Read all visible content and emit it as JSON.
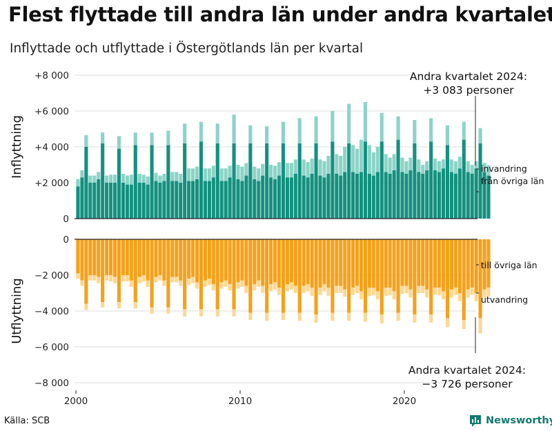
{
  "title": "Flest flyttade till andra län under andra kvartalet",
  "subtitle": "Inflyttade och utflyttade i Östergötlands län per kvartal",
  "source": "Källa: SCB",
  "brand": {
    "name": "Newsworthy",
    "icon": "newsworthy-logo-icon"
  },
  "colors": {
    "in_domestic": "#14917f",
    "in_immigration": "#8dd3c7",
    "out_domestic": "#f5a11b",
    "out_emigration": "#fbd894",
    "grid": "#dddddd",
    "axis": "#222222"
  },
  "callouts": {
    "top": {
      "line1": "Andra kvartalet 2024:",
      "line2": "+3 083 personer"
    },
    "bottom": {
      "line1": "Andra kvartalet 2024:",
      "line2": "−3 726 personer"
    }
  },
  "chart_data": {
    "type": "bar",
    "stacked": true,
    "x_start": 2000,
    "quarters_per_year": 4,
    "x_ticks": [
      "2000",
      "2010",
      "2020"
    ],
    "panels": [
      {
        "ylabel": "Inflyttning",
        "ylim": [
          0,
          8000
        ],
        "y_ticks": [
          0,
          2000,
          4000,
          6000,
          8000
        ],
        "y_tick_labels": [
          "0",
          "+2 000",
          "+4 000",
          "+6 000",
          "+8 000"
        ],
        "series": [
          {
            "name": "från övriga län",
            "color_key": "in_domestic",
            "values": [
              1800,
              2300,
              4000,
              2000,
              2000,
              2200,
              4200,
              2000,
              2000,
              2000,
              3900,
              2000,
              1900,
              1900,
              4100,
              2000,
              2000,
              1900,
              4100,
              2100,
              2000,
              2100,
              4100,
              2100,
              2100,
              2000,
              4200,
              2100,
              2100,
              2200,
              4300,
              2100,
              2100,
              2300,
              4200,
              2100,
              2100,
              2300,
              4200,
              2200,
              2100,
              2400,
              4200,
              2200,
              2100,
              2400,
              4200,
              2300,
              2200,
              2400,
              4200,
              2300,
              2300,
              2500,
              4200,
              2400,
              2300,
              2500,
              4200,
              2400,
              2300,
              2500,
              4300,
              2500,
              2400,
              2600,
              4200,
              2600,
              2500,
              2600,
              4300,
              2500,
              2400,
              2600,
              4300,
              2600,
              2500,
              2700,
              4400,
              2600,
              2500,
              2700,
              4200,
              2600,
              2500,
              2700,
              4300,
              2700,
              2600,
              2800,
              4100,
              2600,
              2500,
              2800,
              4400,
              2600,
              2500,
              2800,
              4200,
              2600,
              2400
            ]
          },
          {
            "name": "invandring",
            "color_key": "in_immigration",
            "values": [
              400,
              400,
              650,
              400,
              400,
              400,
              600,
              400,
              450,
              450,
              700,
              500,
              500,
              550,
              700,
              500,
              450,
              450,
              700,
              450,
              400,
              400,
              800,
              500,
              500,
              500,
              1100,
              700,
              700,
              700,
              1100,
              700,
              700,
              650,
              1100,
              700,
              700,
              650,
              1600,
              800,
              800,
              700,
              1000,
              700,
              700,
              650,
              950,
              700,
              750,
              750,
              1200,
              800,
              800,
              800,
              1400,
              900,
              850,
              850,
              1500,
              900,
              900,
              1000,
              1700,
              1100,
              1100,
              1400,
              2200,
              1500,
              1400,
              1800,
              2200,
              1600,
              1300,
              1400,
              1600,
              1000,
              900,
              900,
              1300,
              800,
              700,
              700,
              1300,
              700,
              500,
              500,
              1300,
              650,
              600,
              500,
              1100,
              700,
              700,
              650,
              1000,
              600,
              500,
              400,
              850,
              500,
              580
            ]
          }
        ]
      },
      {
        "ylabel": "Utflyttning",
        "ylim": [
          -8000,
          0
        ],
        "y_ticks": [
          0,
          -2000,
          -4000,
          -6000,
          -8000
        ],
        "y_tick_labels": [
          "0",
          "−2 000",
          "−4 000",
          "−6 000",
          "−8 000"
        ],
        "series": [
          {
            "name": "till övriga län",
            "color_key": "out_domestic",
            "values": [
              -1900,
              -2300,
              -3600,
              -2000,
              -2000,
              -2100,
              -3500,
              -2000,
              -2000,
              -2100,
              -3500,
              -2000,
              -2000,
              -2300,
              -3500,
              -2100,
              -2000,
              -2300,
              -3800,
              -2100,
              -2000,
              -2300,
              -3800,
              -2100,
              -2100,
              -2300,
              -3900,
              -2200,
              -2100,
              -2400,
              -3900,
              -2300,
              -2200,
              -2500,
              -3900,
              -2400,
              -2300,
              -2500,
              -3900,
              -2400,
              -2300,
              -2600,
              -4100,
              -2500,
              -2300,
              -2600,
              -4100,
              -2500,
              -2400,
              -2700,
              -4100,
              -2500,
              -2400,
              -2600,
              -4100,
              -2600,
              -2500,
              -2700,
              -4200,
              -2700,
              -2500,
              -2700,
              -4100,
              -2600,
              -2600,
              -2800,
              -4100,
              -2700,
              -2600,
              -2900,
              -4100,
              -2700,
              -2700,
              -2900,
              -4200,
              -2700,
              -2700,
              -2900,
              -4100,
              -2600,
              -2600,
              -2800,
              -4200,
              -2600,
              -2600,
              -2800,
              -4200,
              -2700,
              -2700,
              -2900,
              -4400,
              -2800,
              -2700,
              -3000,
              -4500,
              -2800,
              -2700,
              -3000,
              -4400,
              -2800,
              -2700
            ]
          },
          {
            "name": "utvandring",
            "color_key": "out_emigration",
            "values": [
              -300,
              -300,
              -350,
              -300,
              -300,
              -350,
              -300,
              -300,
              -350,
              -350,
              -350,
              -350,
              -350,
              -350,
              -350,
              -350,
              -350,
              -350,
              -350,
              -300,
              -300,
              -300,
              -350,
              -300,
              -300,
              -300,
              -400,
              -350,
              -350,
              -350,
              -400,
              -350,
              -350,
              -350,
              -400,
              -350,
              -350,
              -350,
              -400,
              -350,
              -350,
              -400,
              -400,
              -350,
              -350,
              -400,
              -450,
              -400,
              -400,
              -400,
              -400,
              -400,
              -400,
              -400,
              -450,
              -400,
              -400,
              -450,
              -450,
              -400,
              -400,
              -450,
              -450,
              -400,
              -400,
              -400,
              -450,
              -400,
              -400,
              -450,
              -500,
              -450,
              -400,
              -450,
              -500,
              -450,
              -400,
              -450,
              -450,
              -450,
              -400,
              -450,
              -450,
              -400,
              -400,
              -450,
              -450,
              -400,
              -400,
              -450,
              -500,
              -450,
              -400,
              -450,
              -500,
              -450,
              -400,
              -450,
              -850,
              -450,
              -500
            ]
          }
        ]
      }
    ]
  }
}
